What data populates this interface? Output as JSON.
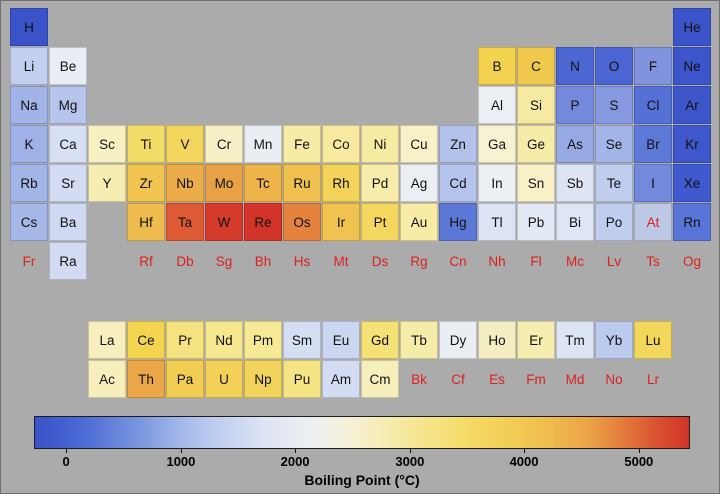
{
  "colors": {
    "background": "#ababab",
    "unknown_text": "#dd2020",
    "label_text": "#000000"
  },
  "colorbar": {
    "label": "Boiling Point (°C)",
    "ticks": [
      {
        "label": "0",
        "pos": 0.049
      },
      {
        "label": "1000",
        "pos": 0.224
      },
      {
        "label": "2000",
        "pos": 0.398
      },
      {
        "label": "3000",
        "pos": 0.573
      },
      {
        "label": "4000",
        "pos": 0.747
      },
      {
        "label": "5000",
        "pos": 0.922
      }
    ],
    "gradient": [
      "#3a52c8 0%",
      "#3f5bce 3%",
      "#4f6ed6 8%",
      "#7591de 15%",
      "#9cb1e8 21%",
      "#c0cef0 28%",
      "#dde4f4 35%",
      "#edeff2 42%",
      "#f6f0d8 48%",
      "#f7ecae 54%",
      "#f6e489 60%",
      "#f4da66 66%",
      "#f2cd55 73%",
      "#efba4e 79%",
      "#eba246 85%",
      "#e37b3c 90%",
      "#da5230 95%",
      "#d03428 100%"
    ]
  },
  "chart_data": {
    "type": "heatmap",
    "title": "Boiling Point (°C)",
    "unit": "°C",
    "layout": "periodic-table",
    "legend_position": "bottom-colorbar",
    "colorbar_ticks": [
      0,
      1000,
      2000,
      3000,
      4000,
      5000
    ],
    "scale_range": [
      -280,
      5450
    ],
    "unknown_shown_as": "red symbol, no cell",
    "cells": [
      {
        "symbol": "H",
        "row": 1,
        "col": 1,
        "value": -253,
        "color": "#3a53c9"
      },
      {
        "symbol": "He",
        "row": 1,
        "col": 18,
        "value": -269,
        "color": "#3a53c9"
      },
      {
        "symbol": "Li",
        "row": 2,
        "col": 1,
        "value": 1342,
        "color": "#c3cfee"
      },
      {
        "symbol": "Be",
        "row": 2,
        "col": 2,
        "value": 2470,
        "color": "#e9edf6"
      },
      {
        "symbol": "B",
        "row": 2,
        "col": 13,
        "value": 4000,
        "color": "#f2d24f"
      },
      {
        "symbol": "C",
        "row": 2,
        "col": 14,
        "value": 4027,
        "color": "#efc84c"
      },
      {
        "symbol": "N",
        "row": 2,
        "col": 15,
        "value": -196,
        "color": "#4c67d2"
      },
      {
        "symbol": "O",
        "row": 2,
        "col": 16,
        "value": -183,
        "color": "#4b66d2"
      },
      {
        "symbol": "F",
        "row": 2,
        "col": 17,
        "value": -188,
        "color": "#8094de"
      },
      {
        "symbol": "Ne",
        "row": 2,
        "col": 18,
        "value": -246,
        "color": "#3c55ca"
      },
      {
        "symbol": "Na",
        "row": 3,
        "col": 1,
        "value": 883,
        "color": "#a1b3e7"
      },
      {
        "symbol": "Mg",
        "row": 3,
        "col": 2,
        "value": 1090,
        "color": "#b7c5ec"
      },
      {
        "symbol": "Al",
        "row": 3,
        "col": 13,
        "value": 2519,
        "color": "#ecf0f5"
      },
      {
        "symbol": "Si",
        "row": 3,
        "col": 14,
        "value": 3265,
        "color": "#f6e9a2"
      },
      {
        "symbol": "P",
        "row": 3,
        "col": 15,
        "value": 281,
        "color": "#7489dc"
      },
      {
        "symbol": "S",
        "row": 3,
        "col": 16,
        "value": 445,
        "color": "#8499e0"
      },
      {
        "symbol": "Cl",
        "row": 3,
        "col": 17,
        "value": -34,
        "color": "#5571d5"
      },
      {
        "symbol": "Ar",
        "row": 3,
        "col": 18,
        "value": -186,
        "color": "#3d57cb"
      },
      {
        "symbol": "K",
        "row": 4,
        "col": 1,
        "value": 759,
        "color": "#9fb2e7"
      },
      {
        "symbol": "Ca",
        "row": 4,
        "col": 2,
        "value": 1484,
        "color": "#d8e0f3"
      },
      {
        "symbol": "Sc",
        "row": 4,
        "col": 3,
        "value": 2836,
        "color": "#f7f0c2"
      },
      {
        "symbol": "Ti",
        "row": 4,
        "col": 4,
        "value": 3287,
        "color": "#f4dc68"
      },
      {
        "symbol": "V",
        "row": 4,
        "col": 5,
        "value": 3407,
        "color": "#f2d55c"
      },
      {
        "symbol": "Cr",
        "row": 4,
        "col": 6,
        "value": 2671,
        "color": "#f7f0c6"
      },
      {
        "symbol": "Mn",
        "row": 4,
        "col": 7,
        "value": 2061,
        "color": "#e9eef2"
      },
      {
        "symbol": "Fe",
        "row": 4,
        "col": 8,
        "value": 2861,
        "color": "#f7eba6"
      },
      {
        "symbol": "Co",
        "row": 4,
        "col": 9,
        "value": 2927,
        "color": "#f7e9a0"
      },
      {
        "symbol": "Ni",
        "row": 4,
        "col": 10,
        "value": 2913,
        "color": "#f7eaa2"
      },
      {
        "symbol": "Cu",
        "row": 4,
        "col": 11,
        "value": 2562,
        "color": "#f8f0c6"
      },
      {
        "symbol": "Zn",
        "row": 4,
        "col": 12,
        "value": 907,
        "color": "#b2c2ea"
      },
      {
        "symbol": "Ga",
        "row": 4,
        "col": 13,
        "value": 2400,
        "color": "#f7f2d2"
      },
      {
        "symbol": "Ge",
        "row": 4,
        "col": 14,
        "value": 2833,
        "color": "#f7eba8"
      },
      {
        "symbol": "As",
        "row": 4,
        "col": 15,
        "value": 614,
        "color": "#97aae4"
      },
      {
        "symbol": "Se",
        "row": 4,
        "col": 16,
        "value": 685,
        "color": "#a3b5e8"
      },
      {
        "symbol": "Br",
        "row": 4,
        "col": 17,
        "value": 59,
        "color": "#5d79d7"
      },
      {
        "symbol": "Kr",
        "row": 4,
        "col": 18,
        "value": -153,
        "color": "#3e58cb"
      },
      {
        "symbol": "Rb",
        "row": 5,
        "col": 1,
        "value": 688,
        "color": "#a2b5e7"
      },
      {
        "symbol": "Sr",
        "row": 5,
        "col": 2,
        "value": 1382,
        "color": "#d3dcf2"
      },
      {
        "symbol": "Y",
        "row": 5,
        "col": 3,
        "value": 3338,
        "color": "#f6edb2"
      },
      {
        "symbol": "Zr",
        "row": 5,
        "col": 4,
        "value": 4409,
        "color": "#f0c44f"
      },
      {
        "symbol": "Nb",
        "row": 5,
        "col": 5,
        "value": 4744,
        "color": "#ebac49"
      },
      {
        "symbol": "Mo",
        "row": 5,
        "col": 6,
        "value": 4639,
        "color": "#e9a145"
      },
      {
        "symbol": "Tc",
        "row": 5,
        "col": 7,
        "value": 4265,
        "color": "#edb44b"
      },
      {
        "symbol": "Ru",
        "row": 5,
        "col": 8,
        "value": 4150,
        "color": "#efbf50"
      },
      {
        "symbol": "Rh",
        "row": 5,
        "col": 9,
        "value": 3695,
        "color": "#f2d258"
      },
      {
        "symbol": "Pd",
        "row": 5,
        "col": 10,
        "value": 2963,
        "color": "#f7eca9"
      },
      {
        "symbol": "Ag",
        "row": 5,
        "col": 11,
        "value": 2162,
        "color": "#ebeff4"
      },
      {
        "symbol": "Cd",
        "row": 5,
        "col": 12,
        "value": 767,
        "color": "#b4c4ec"
      },
      {
        "symbol": "In",
        "row": 5,
        "col": 13,
        "value": 2072,
        "color": "#edf0f2"
      },
      {
        "symbol": "Sn",
        "row": 5,
        "col": 14,
        "value": 2602,
        "color": "#f8f1c8"
      },
      {
        "symbol": "Sb",
        "row": 5,
        "col": 15,
        "value": 1587,
        "color": "#dde4f4"
      },
      {
        "symbol": "Te",
        "row": 5,
        "col": 16,
        "value": 988,
        "color": "#c0cdee"
      },
      {
        "symbol": "I",
        "row": 5,
        "col": 17,
        "value": 184,
        "color": "#7389dc"
      },
      {
        "symbol": "Xe",
        "row": 5,
        "col": 18,
        "value": -108,
        "color": "#3f5ace"
      },
      {
        "symbol": "Cs",
        "row": 6,
        "col": 1,
        "value": 671,
        "color": "#a6b8e8"
      },
      {
        "symbol": "Ba",
        "row": 6,
        "col": 2,
        "value": 1845,
        "color": "#cfd9f1"
      },
      {
        "symbol": "Hf",
        "row": 6,
        "col": 4,
        "value": 4603,
        "color": "#eebb4d"
      },
      {
        "symbol": "Ta",
        "row": 6,
        "col": 5,
        "value": 5458,
        "color": "#dd5a35"
      },
      {
        "symbol": "W",
        "row": 6,
        "col": 6,
        "value": 5555,
        "color": "#d43b2b"
      },
      {
        "symbol": "Re",
        "row": 6,
        "col": 7,
        "value": 5596,
        "color": "#d2342a"
      },
      {
        "symbol": "Os",
        "row": 6,
        "col": 8,
        "value": 5012,
        "color": "#e5823e"
      },
      {
        "symbol": "Ir",
        "row": 6,
        "col": 9,
        "value": 4428,
        "color": "#f0c350"
      },
      {
        "symbol": "Pt",
        "row": 6,
        "col": 10,
        "value": 3825,
        "color": "#f3d75f"
      },
      {
        "symbol": "Au",
        "row": 6,
        "col": 11,
        "value": 2856,
        "color": "#f7eba5"
      },
      {
        "symbol": "Hg",
        "row": 6,
        "col": 12,
        "value": 357,
        "color": "#5c78d7"
      },
      {
        "symbol": "Tl",
        "row": 6,
        "col": 13,
        "value": 1473,
        "color": "#dce3f4"
      },
      {
        "symbol": "Pb",
        "row": 6,
        "col": 14,
        "value": 1749,
        "color": "#e3e9f5"
      },
      {
        "symbol": "Bi",
        "row": 6,
        "col": 15,
        "value": 1564,
        "color": "#dee5f4"
      },
      {
        "symbol": "Po",
        "row": 6,
        "col": 16,
        "value": 962,
        "color": "#bfcdee"
      },
      {
        "symbol": "At",
        "row": 6,
        "col": 17,
        "value": null,
        "color": "#bdc8e4",
        "unknown": true
      },
      {
        "symbol": "Rn",
        "row": 6,
        "col": 18,
        "value": -62,
        "color": "#5874d7"
      },
      {
        "symbol": "Fr",
        "row": 7,
        "col": 1,
        "value": null,
        "unknown": true
      },
      {
        "symbol": "Ra",
        "row": 7,
        "col": 2,
        "value": 1737,
        "color": "#d2dbf2"
      },
      {
        "symbol": "Rf",
        "row": 7,
        "col": 4,
        "value": null,
        "unknown": true
      },
      {
        "symbol": "Db",
        "row": 7,
        "col": 5,
        "value": null,
        "unknown": true
      },
      {
        "symbol": "Sg",
        "row": 7,
        "col": 6,
        "value": null,
        "unknown": true
      },
      {
        "symbol": "Bh",
        "row": 7,
        "col": 7,
        "value": null,
        "unknown": true
      },
      {
        "symbol": "Hs",
        "row": 7,
        "col": 8,
        "value": null,
        "unknown": true
      },
      {
        "symbol": "Mt",
        "row": 7,
        "col": 9,
        "value": null,
        "unknown": true
      },
      {
        "symbol": "Ds",
        "row": 7,
        "col": 10,
        "value": null,
        "unknown": true
      },
      {
        "symbol": "Rg",
        "row": 7,
        "col": 11,
        "value": null,
        "unknown": true
      },
      {
        "symbol": "Cn",
        "row": 7,
        "col": 12,
        "value": null,
        "unknown": true
      },
      {
        "symbol": "Nh",
        "row": 7,
        "col": 13,
        "value": null,
        "unknown": true
      },
      {
        "symbol": "Fl",
        "row": 7,
        "col": 14,
        "value": null,
        "unknown": true
      },
      {
        "symbol": "Mc",
        "row": 7,
        "col": 15,
        "value": null,
        "unknown": true
      },
      {
        "symbol": "Lv",
        "row": 7,
        "col": 16,
        "value": null,
        "unknown": true
      },
      {
        "symbol": "Ts",
        "row": 7,
        "col": 17,
        "value": null,
        "unknown": true
      },
      {
        "symbol": "Og",
        "row": 7,
        "col": 18,
        "value": null,
        "unknown": true
      },
      {
        "symbol": "La",
        "row": 8,
        "col": 3,
        "value": 3464,
        "color": "#f7efbe"
      },
      {
        "symbol": "Ce",
        "row": 8,
        "col": 4,
        "value": 3443,
        "color": "#f3d44f"
      },
      {
        "symbol": "Pr",
        "row": 8,
        "col": 5,
        "value": 3520,
        "color": "#f5e382"
      },
      {
        "symbol": "Nd",
        "row": 8,
        "col": 6,
        "value": 3074,
        "color": "#f6e88f"
      },
      {
        "symbol": "Pm",
        "row": 8,
        "col": 7,
        "value": 3000,
        "color": "#f6ea96"
      },
      {
        "symbol": "Sm",
        "row": 8,
        "col": 8,
        "value": 1794,
        "color": "#d5def2"
      },
      {
        "symbol": "Eu",
        "row": 8,
        "col": 9,
        "value": 1529,
        "color": "#cbd6f0"
      },
      {
        "symbol": "Gd",
        "row": 8,
        "col": 10,
        "value": 3273,
        "color": "#f5e175"
      },
      {
        "symbol": "Tb",
        "row": 8,
        "col": 11,
        "value": 3230,
        "color": "#f6ecaa"
      },
      {
        "symbol": "Dy",
        "row": 8,
        "col": 12,
        "value": 2567,
        "color": "#eaeef3"
      },
      {
        "symbol": "Ho",
        "row": 8,
        "col": 13,
        "value": 2700,
        "color": "#f4eec2"
      },
      {
        "symbol": "Er",
        "row": 8,
        "col": 14,
        "value": 2868,
        "color": "#f6edb0"
      },
      {
        "symbol": "Tm",
        "row": 8,
        "col": 15,
        "value": 1950,
        "color": "#dde4f3"
      },
      {
        "symbol": "Yb",
        "row": 8,
        "col": 16,
        "value": 1196,
        "color": "#bccbed"
      },
      {
        "symbol": "Lu",
        "row": 8,
        "col": 17,
        "value": 3402,
        "color": "#f3d75c"
      },
      {
        "symbol": "Ac",
        "row": 9,
        "col": 3,
        "value": 3198,
        "color": "#f6efbc"
      },
      {
        "symbol": "Th",
        "row": 9,
        "col": 4,
        "value": 4788,
        "color": "#eba647"
      },
      {
        "symbol": "Pa",
        "row": 9,
        "col": 5,
        "value": 4000,
        "color": "#f1cd53"
      },
      {
        "symbol": "U",
        "row": 9,
        "col": 6,
        "value": 4131,
        "color": "#f2d058"
      },
      {
        "symbol": "Np",
        "row": 9,
        "col": 7,
        "value": 3902,
        "color": "#f2d45c"
      },
      {
        "symbol": "Pu",
        "row": 9,
        "col": 8,
        "value": 3228,
        "color": "#f5e484"
      },
      {
        "symbol": "Am",
        "row": 9,
        "col": 9,
        "value": 2011,
        "color": "#d3dcf2"
      },
      {
        "symbol": "Cm",
        "row": 9,
        "col": 10,
        "value": 3110,
        "color": "#f6efbc"
      },
      {
        "symbol": "Bk",
        "row": 9,
        "col": 11,
        "value": null,
        "unknown": true
      },
      {
        "symbol": "Cf",
        "row": 9,
        "col": 12,
        "value": null,
        "unknown": true
      },
      {
        "symbol": "Es",
        "row": 9,
        "col": 13,
        "value": null,
        "unknown": true
      },
      {
        "symbol": "Fm",
        "row": 9,
        "col": 14,
        "value": null,
        "unknown": true
      },
      {
        "symbol": "Md",
        "row": 9,
        "col": 15,
        "value": null,
        "unknown": true
      },
      {
        "symbol": "No",
        "row": 9,
        "col": 16,
        "value": null,
        "unknown": true
      },
      {
        "symbol": "Lr",
        "row": 9,
        "col": 17,
        "value": null,
        "unknown": true
      }
    ]
  }
}
